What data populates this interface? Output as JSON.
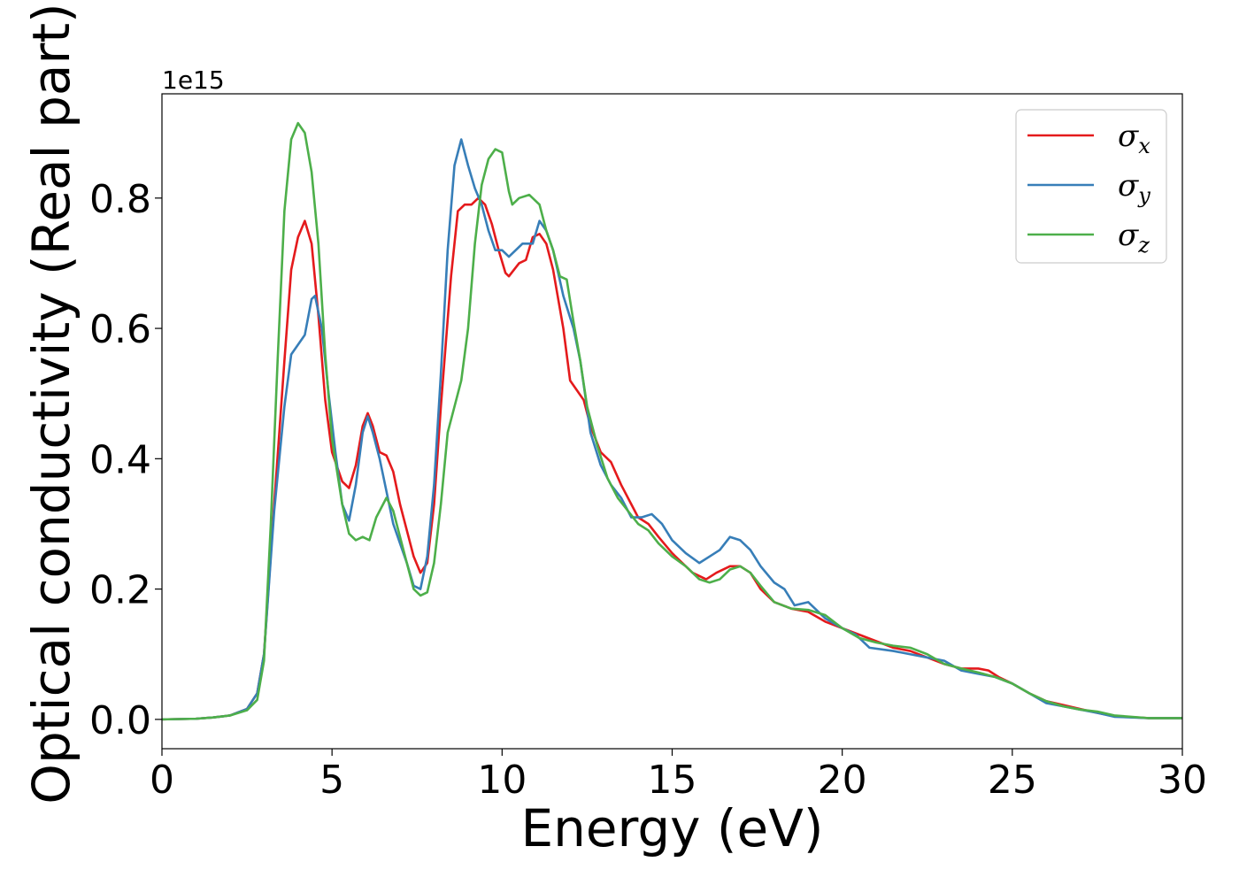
{
  "chart_data": {
    "type": "line",
    "xlabel": "Energy (eV)",
    "ylabel": "Optical conductivity (Real part)",
    "y_offset_label": "1e15",
    "xlim": [
      0,
      30
    ],
    "ylim": [
      -0.045,
      0.96
    ],
    "y_scale_exponent": 15,
    "x_ticks": [
      0,
      5,
      10,
      15,
      20,
      25,
      30
    ],
    "x_tick_labels": [
      "0",
      "5",
      "10",
      "15",
      "20",
      "25",
      "30"
    ],
    "y_ticks": [
      0.0,
      0.2,
      0.4,
      0.6,
      0.8
    ],
    "y_tick_labels": [
      "0.0",
      "0.2",
      "0.4",
      "0.6",
      "0.8"
    ],
    "grid": false,
    "legend_position": "top-right",
    "colors": {
      "sigma_x": "#e41a1c",
      "sigma_y": "#377eb8",
      "sigma_z": "#4daf4a"
    },
    "series": [
      {
        "name": "σx",
        "legend_symbol": "σ",
        "legend_sub": "x",
        "color": "#e41a1c",
        "points": [
          [
            0,
            0.0
          ],
          [
            1,
            0.001
          ],
          [
            1.5,
            0.003
          ],
          [
            2,
            0.006
          ],
          [
            2.5,
            0.016
          ],
          [
            2.8,
            0.04
          ],
          [
            3,
            0.1
          ],
          [
            3.3,
            0.33
          ],
          [
            3.6,
            0.55
          ],
          [
            3.8,
            0.69
          ],
          [
            4,
            0.74
          ],
          [
            4.2,
            0.765
          ],
          [
            4.4,
            0.73
          ],
          [
            4.6,
            0.62
          ],
          [
            4.8,
            0.49
          ],
          [
            5,
            0.41
          ],
          [
            5.3,
            0.365
          ],
          [
            5.5,
            0.355
          ],
          [
            5.7,
            0.39
          ],
          [
            5.9,
            0.45
          ],
          [
            6.05,
            0.47
          ],
          [
            6.2,
            0.45
          ],
          [
            6.4,
            0.41
          ],
          [
            6.6,
            0.405
          ],
          [
            6.8,
            0.38
          ],
          [
            7,
            0.33
          ],
          [
            7.2,
            0.29
          ],
          [
            7.4,
            0.25
          ],
          [
            7.6,
            0.225
          ],
          [
            7.8,
            0.24
          ],
          [
            8,
            0.33
          ],
          [
            8.2,
            0.48
          ],
          [
            8.5,
            0.68
          ],
          [
            8.7,
            0.78
          ],
          [
            8.9,
            0.79
          ],
          [
            9.1,
            0.79
          ],
          [
            9.3,
            0.8
          ],
          [
            9.5,
            0.79
          ],
          [
            9.7,
            0.76
          ],
          [
            9.9,
            0.72
          ],
          [
            10.1,
            0.685
          ],
          [
            10.2,
            0.68
          ],
          [
            10.5,
            0.7
          ],
          [
            10.7,
            0.705
          ],
          [
            10.9,
            0.74
          ],
          [
            11.1,
            0.745
          ],
          [
            11.3,
            0.73
          ],
          [
            11.5,
            0.69
          ],
          [
            11.8,
            0.6
          ],
          [
            12,
            0.52
          ],
          [
            12.2,
            0.505
          ],
          [
            12.4,
            0.49
          ],
          [
            12.6,
            0.45
          ],
          [
            12.9,
            0.41
          ],
          [
            13.2,
            0.395
          ],
          [
            13.5,
            0.36
          ],
          [
            13.8,
            0.33
          ],
          [
            14,
            0.31
          ],
          [
            14.3,
            0.3
          ],
          [
            14.6,
            0.28
          ],
          [
            15,
            0.255
          ],
          [
            15.3,
            0.24
          ],
          [
            15.6,
            0.225
          ],
          [
            16,
            0.215
          ],
          [
            16.3,
            0.225
          ],
          [
            16.7,
            0.235
          ],
          [
            17,
            0.235
          ],
          [
            17.3,
            0.225
          ],
          [
            17.6,
            0.2
          ],
          [
            18,
            0.18
          ],
          [
            18.5,
            0.17
          ],
          [
            19,
            0.165
          ],
          [
            19.5,
            0.15
          ],
          [
            20,
            0.14
          ],
          [
            20.5,
            0.13
          ],
          [
            21,
            0.12
          ],
          [
            21.5,
            0.11
          ],
          [
            22,
            0.105
          ],
          [
            22.5,
            0.095
          ],
          [
            23,
            0.085
          ],
          [
            23.5,
            0.078
          ],
          [
            24,
            0.078
          ],
          [
            24.3,
            0.075
          ],
          [
            24.6,
            0.065
          ],
          [
            25,
            0.055
          ],
          [
            25.5,
            0.04
          ],
          [
            26,
            0.028
          ],
          [
            26.5,
            0.022
          ],
          [
            27,
            0.016
          ],
          [
            27.5,
            0.01
          ],
          [
            28,
            0.005
          ],
          [
            29,
            0.002
          ],
          [
            30,
            0.002
          ]
        ]
      },
      {
        "name": "σy",
        "legend_symbol": "σ",
        "legend_sub": "y",
        "color": "#377eb8",
        "points": [
          [
            0,
            0.0
          ],
          [
            1,
            0.001
          ],
          [
            1.5,
            0.003
          ],
          [
            2,
            0.006
          ],
          [
            2.5,
            0.016
          ],
          [
            2.8,
            0.04
          ],
          [
            3,
            0.1
          ],
          [
            3.3,
            0.32
          ],
          [
            3.6,
            0.48
          ],
          [
            3.8,
            0.56
          ],
          [
            4,
            0.575
          ],
          [
            4.2,
            0.59
          ],
          [
            4.4,
            0.645
          ],
          [
            4.5,
            0.65
          ],
          [
            4.7,
            0.6
          ],
          [
            4.9,
            0.5
          ],
          [
            5.1,
            0.41
          ],
          [
            5.3,
            0.33
          ],
          [
            5.5,
            0.305
          ],
          [
            5.7,
            0.36
          ],
          [
            5.9,
            0.44
          ],
          [
            6.05,
            0.465
          ],
          [
            6.2,
            0.44
          ],
          [
            6.4,
            0.4
          ],
          [
            6.6,
            0.35
          ],
          [
            6.8,
            0.3
          ],
          [
            7,
            0.27
          ],
          [
            7.2,
            0.24
          ],
          [
            7.4,
            0.205
          ],
          [
            7.6,
            0.2
          ],
          [
            7.8,
            0.25
          ],
          [
            8,
            0.36
          ],
          [
            8.2,
            0.53
          ],
          [
            8.4,
            0.72
          ],
          [
            8.6,
            0.85
          ],
          [
            8.8,
            0.89
          ],
          [
            9,
            0.85
          ],
          [
            9.2,
            0.815
          ],
          [
            9.4,
            0.79
          ],
          [
            9.6,
            0.75
          ],
          [
            9.8,
            0.72
          ],
          [
            10,
            0.72
          ],
          [
            10.2,
            0.71
          ],
          [
            10.4,
            0.72
          ],
          [
            10.6,
            0.73
          ],
          [
            10.9,
            0.73
          ],
          [
            11.1,
            0.765
          ],
          [
            11.3,
            0.75
          ],
          [
            11.5,
            0.72
          ],
          [
            11.8,
            0.65
          ],
          [
            12.1,
            0.6
          ],
          [
            12.3,
            0.55
          ],
          [
            12.6,
            0.44
          ],
          [
            12.9,
            0.39
          ],
          [
            13.2,
            0.36
          ],
          [
            13.5,
            0.34
          ],
          [
            13.8,
            0.31
          ],
          [
            14.1,
            0.31
          ],
          [
            14.4,
            0.315
          ],
          [
            14.7,
            0.3
          ],
          [
            15,
            0.275
          ],
          [
            15.4,
            0.255
          ],
          [
            15.8,
            0.24
          ],
          [
            16.1,
            0.25
          ],
          [
            16.4,
            0.26
          ],
          [
            16.7,
            0.28
          ],
          [
            17,
            0.275
          ],
          [
            17.3,
            0.26
          ],
          [
            17.6,
            0.235
          ],
          [
            18,
            0.21
          ],
          [
            18.3,
            0.2
          ],
          [
            18.6,
            0.175
          ],
          [
            19,
            0.18
          ],
          [
            19.5,
            0.155
          ],
          [
            20,
            0.14
          ],
          [
            20.4,
            0.13
          ],
          [
            20.8,
            0.11
          ],
          [
            21.5,
            0.105
          ],
          [
            22,
            0.1
          ],
          [
            22.5,
            0.095
          ],
          [
            23,
            0.09
          ],
          [
            23.5,
            0.075
          ],
          [
            24,
            0.07
          ],
          [
            24.5,
            0.065
          ],
          [
            25,
            0.055
          ],
          [
            25.5,
            0.04
          ],
          [
            26,
            0.025
          ],
          [
            26.5,
            0.02
          ],
          [
            27,
            0.015
          ],
          [
            27.5,
            0.01
          ],
          [
            28,
            0.004
          ],
          [
            29,
            0.002
          ],
          [
            30,
            0.002
          ]
        ]
      },
      {
        "name": "σz",
        "legend_symbol": "σ",
        "legend_sub": "z",
        "color": "#4daf4a",
        "points": [
          [
            0,
            0.0
          ],
          [
            1,
            0.001
          ],
          [
            1.5,
            0.003
          ],
          [
            2,
            0.006
          ],
          [
            2.5,
            0.014
          ],
          [
            2.8,
            0.03
          ],
          [
            3,
            0.09
          ],
          [
            3.2,
            0.3
          ],
          [
            3.4,
            0.55
          ],
          [
            3.6,
            0.78
          ],
          [
            3.8,
            0.89
          ],
          [
            4,
            0.915
          ],
          [
            4.2,
            0.9
          ],
          [
            4.4,
            0.84
          ],
          [
            4.6,
            0.73
          ],
          [
            4.8,
            0.56
          ],
          [
            5,
            0.43
          ],
          [
            5.3,
            0.33
          ],
          [
            5.5,
            0.285
          ],
          [
            5.7,
            0.275
          ],
          [
            5.9,
            0.28
          ],
          [
            6.1,
            0.275
          ],
          [
            6.3,
            0.31
          ],
          [
            6.6,
            0.34
          ],
          [
            6.8,
            0.32
          ],
          [
            7,
            0.28
          ],
          [
            7.2,
            0.24
          ],
          [
            7.4,
            0.2
          ],
          [
            7.6,
            0.19
          ],
          [
            7.8,
            0.195
          ],
          [
            8,
            0.24
          ],
          [
            8.2,
            0.33
          ],
          [
            8.4,
            0.44
          ],
          [
            8.6,
            0.48
          ],
          [
            8.8,
            0.52
          ],
          [
            9,
            0.6
          ],
          [
            9.2,
            0.73
          ],
          [
            9.4,
            0.82
          ],
          [
            9.6,
            0.86
          ],
          [
            9.8,
            0.875
          ],
          [
            10,
            0.87
          ],
          [
            10.2,
            0.81
          ],
          [
            10.3,
            0.79
          ],
          [
            10.5,
            0.8
          ],
          [
            10.8,
            0.805
          ],
          [
            11.1,
            0.79
          ],
          [
            11.3,
            0.75
          ],
          [
            11.5,
            0.72
          ],
          [
            11.7,
            0.68
          ],
          [
            11.9,
            0.675
          ],
          [
            12.1,
            0.61
          ],
          [
            12.3,
            0.55
          ],
          [
            12.5,
            0.48
          ],
          [
            12.8,
            0.42
          ],
          [
            13.1,
            0.37
          ],
          [
            13.4,
            0.34
          ],
          [
            13.7,
            0.32
          ],
          [
            14,
            0.3
          ],
          [
            14.3,
            0.29
          ],
          [
            14.6,
            0.27
          ],
          [
            15,
            0.25
          ],
          [
            15.4,
            0.235
          ],
          [
            15.8,
            0.215
          ],
          [
            16.1,
            0.21
          ],
          [
            16.4,
            0.215
          ],
          [
            16.7,
            0.23
          ],
          [
            17,
            0.235
          ],
          [
            17.3,
            0.225
          ],
          [
            17.6,
            0.205
          ],
          [
            18,
            0.18
          ],
          [
            18.5,
            0.17
          ],
          [
            19,
            0.168
          ],
          [
            19.5,
            0.16
          ],
          [
            20,
            0.14
          ],
          [
            20.5,
            0.125
          ],
          [
            21,
            0.118
          ],
          [
            21.5,
            0.113
          ],
          [
            22,
            0.11
          ],
          [
            22.5,
            0.1
          ],
          [
            23,
            0.085
          ],
          [
            23.5,
            0.078
          ],
          [
            24,
            0.072
          ],
          [
            24.5,
            0.065
          ],
          [
            25,
            0.055
          ],
          [
            25.5,
            0.04
          ],
          [
            26,
            0.028
          ],
          [
            26.5,
            0.02
          ],
          [
            27,
            0.015
          ],
          [
            27.5,
            0.012
          ],
          [
            28,
            0.006
          ],
          [
            29,
            0.002
          ],
          [
            30,
            0.002
          ]
        ]
      }
    ]
  }
}
